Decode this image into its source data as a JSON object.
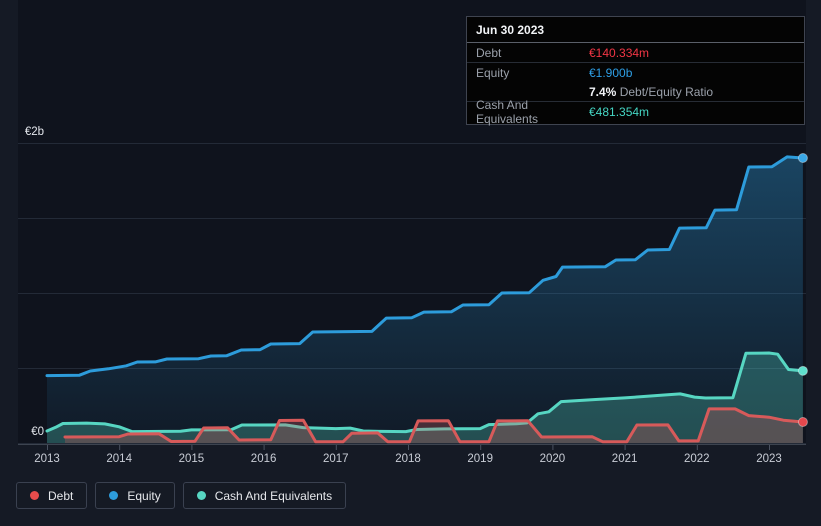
{
  "tooltip": {
    "date": "Jun 30 2023",
    "debt_label": "Debt",
    "debt_value": "€140.334m",
    "equity_label": "Equity",
    "equity_value": "€1.900b",
    "ratio_value": "7.4%",
    "ratio_label": "Debt/Equity Ratio",
    "cash_label": "Cash And Equivalents",
    "cash_value": "€481.354m"
  },
  "legend": {
    "items": [
      {
        "id": "debt",
        "label": "Debt",
        "color": "#e74c4c"
      },
      {
        "id": "equity",
        "label": "Equity",
        "color": "#2d9cdb"
      },
      {
        "id": "cash",
        "label": "Cash And Equivalents",
        "color": "#57d6c2"
      }
    ]
  },
  "chart_data": {
    "type": "area",
    "title": "",
    "xlabel": "",
    "ylabel": "",
    "x_unit": "year",
    "x_range": [
      2013.0,
      2023.47
    ],
    "ylim_eur_m": [
      0,
      2000
    ],
    "grid": true,
    "legend_position": "bottom-left",
    "y_ticks": [
      {
        "value": 2000,
        "label": "€2b"
      },
      {
        "value": 0,
        "label": "€0"
      }
    ],
    "grid_values_eur_m": [
      2000,
      1500,
      1000,
      500,
      0
    ],
    "x_tick_years": [
      2013,
      2014,
      2015,
      2016,
      2017,
      2018,
      2019,
      2020,
      2021,
      2022,
      2023
    ],
    "series": [
      {
        "id": "equity",
        "name": "Equity",
        "color": "#2d9cdb",
        "dot_color": "#3aa7e6",
        "fill_top": "rgba(45,156,219,0.38)",
        "fill_bottom": "rgba(45,156,219,0.05)",
        "points": [
          [
            2013.0,
            449
          ],
          [
            2013.45,
            452
          ],
          [
            2013.6,
            480
          ],
          [
            2013.85,
            495
          ],
          [
            2014.1,
            515
          ],
          [
            2014.25,
            540
          ],
          [
            2014.5,
            541
          ],
          [
            2014.66,
            560
          ],
          [
            2015.1,
            562
          ],
          [
            2015.27,
            580
          ],
          [
            2015.49,
            582
          ],
          [
            2015.69,
            620
          ],
          [
            2015.95,
            622
          ],
          [
            2016.1,
            660
          ],
          [
            2016.5,
            663
          ],
          [
            2016.68,
            740
          ],
          [
            2017.5,
            744
          ],
          [
            2017.7,
            833
          ],
          [
            2018.05,
            835
          ],
          [
            2018.22,
            873
          ],
          [
            2018.6,
            875
          ],
          [
            2018.76,
            920
          ],
          [
            2019.12,
            922
          ],
          [
            2019.3,
            1000
          ],
          [
            2019.68,
            1002
          ],
          [
            2019.87,
            1085
          ],
          [
            2020.05,
            1110
          ],
          [
            2020.14,
            1173
          ],
          [
            2020.73,
            1175
          ],
          [
            2020.88,
            1220
          ],
          [
            2021.15,
            1222
          ],
          [
            2021.32,
            1287
          ],
          [
            2021.62,
            1290
          ],
          [
            2021.76,
            1433
          ],
          [
            2022.13,
            1435
          ],
          [
            2022.25,
            1553
          ],
          [
            2022.55,
            1555
          ],
          [
            2022.72,
            1840
          ],
          [
            2023.04,
            1842
          ],
          [
            2023.25,
            1907
          ],
          [
            2023.47,
            1900
          ]
        ]
      },
      {
        "id": "cash",
        "name": "Cash And Equivalents",
        "color": "#57d6c2",
        "dot_color": "#5fe0cd",
        "fill": "rgba(87,214,194,0.28)",
        "points": [
          [
            2013.0,
            80
          ],
          [
            2013.12,
            105
          ],
          [
            2013.22,
            130
          ],
          [
            2013.55,
            133
          ],
          [
            2013.8,
            127
          ],
          [
            2014.0,
            108
          ],
          [
            2014.18,
            76
          ],
          [
            2014.85,
            78
          ],
          [
            2015.0,
            87
          ],
          [
            2015.55,
            88
          ],
          [
            2015.7,
            120
          ],
          [
            2016.3,
            121
          ],
          [
            2016.55,
            103
          ],
          [
            2017.0,
            96
          ],
          [
            2017.2,
            99
          ],
          [
            2017.38,
            80
          ],
          [
            2017.6,
            77
          ],
          [
            2017.97,
            76
          ],
          [
            2018.12,
            90
          ],
          [
            2018.5,
            94
          ],
          [
            2019.0,
            96
          ],
          [
            2019.12,
            123
          ],
          [
            2019.5,
            128
          ],
          [
            2019.65,
            134
          ],
          [
            2019.8,
            195
          ],
          [
            2019.95,
            208
          ],
          [
            2020.12,
            276
          ],
          [
            2020.6,
            290
          ],
          [
            2021.0,
            301
          ],
          [
            2021.55,
            320
          ],
          [
            2021.77,
            327
          ],
          [
            2021.97,
            306
          ],
          [
            2022.12,
            300
          ],
          [
            2022.5,
            302
          ],
          [
            2022.68,
            598
          ],
          [
            2023.0,
            600
          ],
          [
            2023.12,
            592
          ],
          [
            2023.27,
            490
          ],
          [
            2023.47,
            481
          ]
        ]
      },
      {
        "id": "debt",
        "name": "Debt",
        "color": "#d75a5a",
        "dot_color": "#e5484d",
        "fill": "rgba(215,90,90,0.28)",
        "points": [
          [
            2013.25,
            40
          ],
          [
            2014.0,
            42
          ],
          [
            2014.12,
            60
          ],
          [
            2014.55,
            62
          ],
          [
            2014.72,
            10
          ],
          [
            2015.05,
            12
          ],
          [
            2015.17,
            100
          ],
          [
            2015.5,
            102
          ],
          [
            2015.66,
            20
          ],
          [
            2016.1,
            22
          ],
          [
            2016.22,
            150
          ],
          [
            2016.55,
            152
          ],
          [
            2016.72,
            8
          ],
          [
            2017.1,
            8
          ],
          [
            2017.22,
            65
          ],
          [
            2017.58,
            67
          ],
          [
            2017.72,
            8
          ],
          [
            2018.02,
            8
          ],
          [
            2018.14,
            147
          ],
          [
            2018.56,
            148
          ],
          [
            2018.72,
            8
          ],
          [
            2019.12,
            8
          ],
          [
            2019.24,
            147
          ],
          [
            2019.66,
            148
          ],
          [
            2019.85,
            40
          ],
          [
            2020.55,
            42
          ],
          [
            2020.7,
            8
          ],
          [
            2021.03,
            8
          ],
          [
            2021.17,
            120
          ],
          [
            2021.6,
            121
          ],
          [
            2021.75,
            14
          ],
          [
            2022.02,
            14
          ],
          [
            2022.17,
            227
          ],
          [
            2022.53,
            227
          ],
          [
            2022.72,
            183
          ],
          [
            2023.0,
            172
          ],
          [
            2023.2,
            152
          ],
          [
            2023.47,
            140
          ]
        ]
      }
    ]
  },
  "colors": {
    "background": "#151a25",
    "plot_background": "#0f131d",
    "gridline": "#232a37",
    "axis_line": "#3d4450",
    "tick": "#4a5160",
    "year_label": "#c9cdd6",
    "y_label": "#e3e6ec"
  }
}
